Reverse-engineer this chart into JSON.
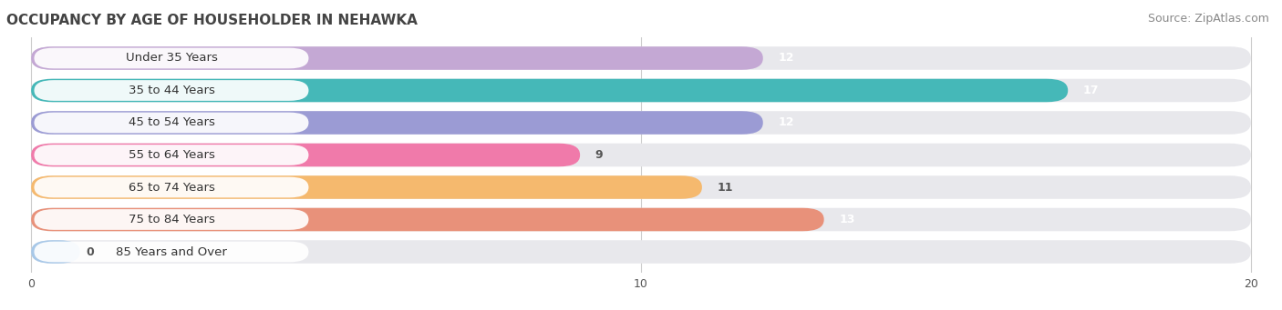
{
  "title": "OCCUPANCY BY AGE OF HOUSEHOLDER IN NEHAWKA",
  "source": "Source: ZipAtlas.com",
  "categories": [
    "Under 35 Years",
    "35 to 44 Years",
    "45 to 54 Years",
    "55 to 64 Years",
    "65 to 74 Years",
    "75 to 84 Years",
    "85 Years and Over"
  ],
  "values": [
    12,
    17,
    12,
    9,
    11,
    13,
    0
  ],
  "bar_colors": [
    "#c4a8d4",
    "#45b8b8",
    "#9b9bd4",
    "#f07aaa",
    "#f5b96e",
    "#e8917a",
    "#a8c8e8"
  ],
  "xlim_data": [
    0,
    20
  ],
  "xticks": [
    0,
    10,
    20
  ],
  "background_color": "#ffffff",
  "bar_bg_color": "#e8e8ec",
  "title_fontsize": 11,
  "source_fontsize": 9,
  "label_fontsize": 9.5,
  "value_fontsize": 9,
  "tick_fontsize": 9,
  "value_colors": [
    "white",
    "white",
    "white",
    "#555555",
    "#555555",
    "white",
    "#555555"
  ]
}
